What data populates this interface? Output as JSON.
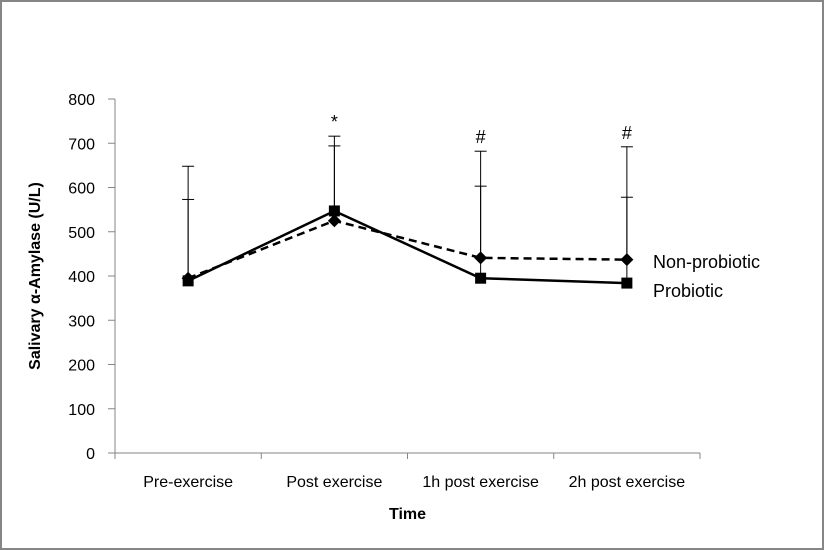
{
  "chart_data": {
    "type": "line",
    "title": "",
    "xlabel": "Time",
    "ylabel": "Salivary α-Amylase (U/L)",
    "ylim": [
      0,
      800
    ],
    "yticks": [
      0,
      100,
      200,
      300,
      400,
      500,
      600,
      700,
      800
    ],
    "grid": false,
    "categories": [
      "Pre-exercise",
      "Post exercise",
      "1h post exercise",
      "2h post exercise"
    ],
    "series": [
      {
        "name": "Non-probiotic",
        "marker": "diamond",
        "line_style": "dashed",
        "values": [
          395,
          525,
          441,
          437
        ],
        "error_upper": [
          648,
          716,
          682,
          692
        ]
      },
      {
        "name": "Probiotic",
        "marker": "square",
        "line_style": "solid",
        "values": [
          389,
          547,
          395,
          384
        ],
        "error_upper": [
          573,
          694,
          603,
          578
        ]
      }
    ],
    "annotations": [
      {
        "category": "Post exercise",
        "text": "*"
      },
      {
        "category": "1h post exercise",
        "text": "#"
      },
      {
        "category": "2h post exercise",
        "text": "#"
      }
    ],
    "legend": {
      "placement": "right",
      "entries": [
        "Non-probiotic",
        "Probiotic"
      ]
    }
  }
}
